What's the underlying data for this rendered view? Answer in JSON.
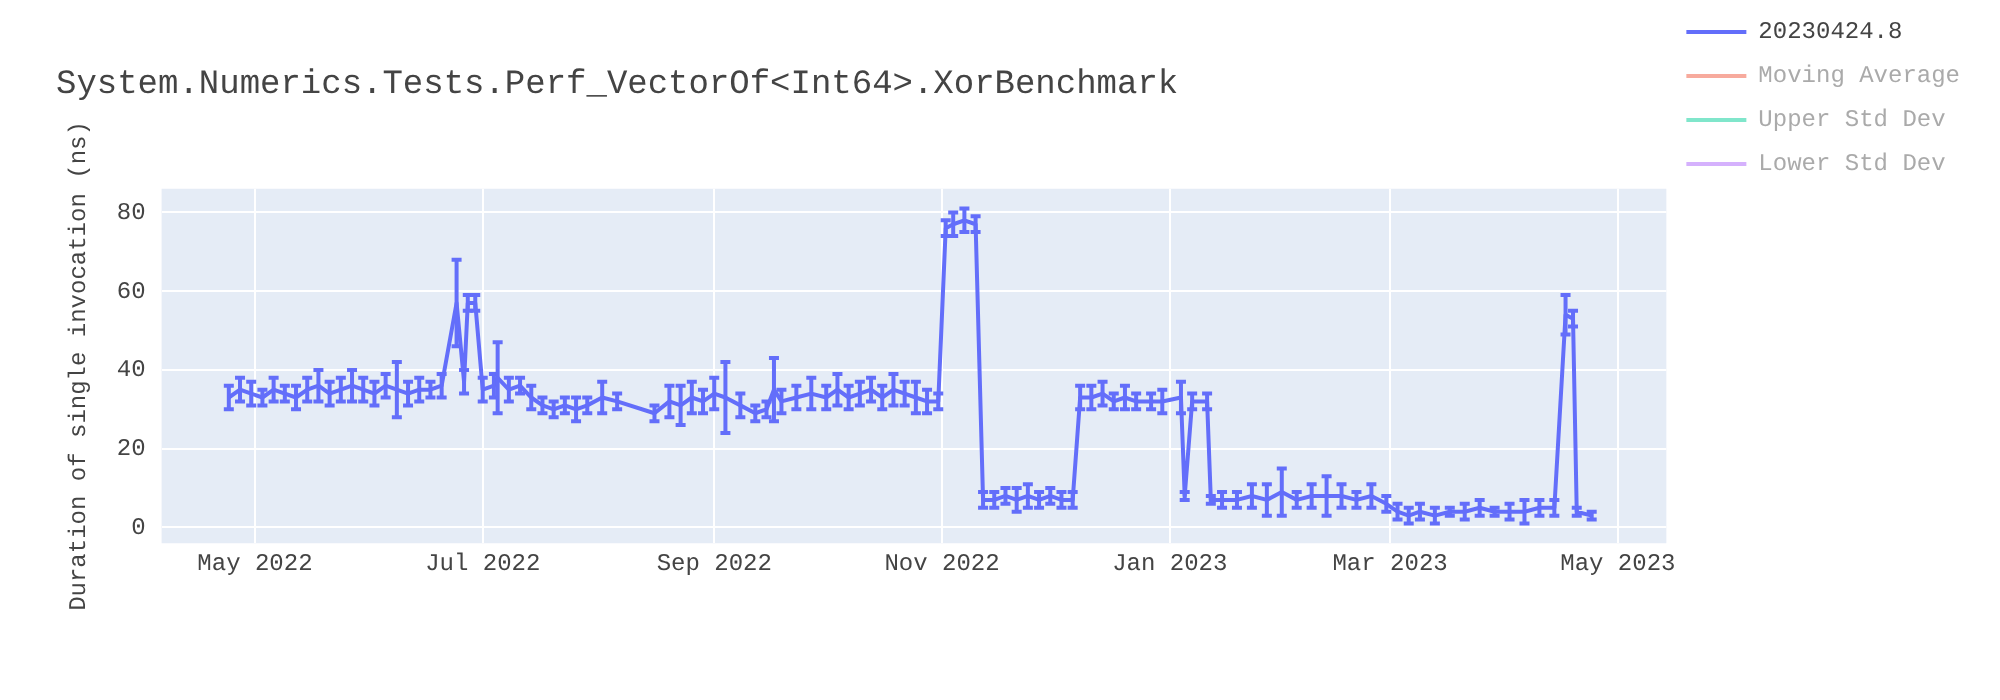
{
  "chart_data": {
    "type": "line",
    "title": "System.Numerics.Tests.Perf_VectorOf<Int64>.XorBenchmark",
    "ylabel": "Duration of single invocation (ns)",
    "xlim": [
      "2022-04-06",
      "2023-05-14"
    ],
    "xticks": [
      {
        "value": "2022-05-01",
        "label": "May 2022"
      },
      {
        "value": "2022-07-01",
        "label": "Jul 2022"
      },
      {
        "value": "2022-09-01",
        "label": "Sep 2022"
      },
      {
        "value": "2022-11-01",
        "label": "Nov 2022"
      },
      {
        "value": "2023-01-01",
        "label": "Jan 2023"
      },
      {
        "value": "2023-03-01",
        "label": "Mar 2023"
      },
      {
        "value": "2023-05-01",
        "label": "May 2023"
      }
    ],
    "ylim": [
      -4,
      86
    ],
    "yticks": [
      0,
      20,
      40,
      60,
      80
    ],
    "grid": true,
    "legend": "top right",
    "line_style": "solid",
    "series": [
      {
        "name": "20230424.8",
        "color": "#636efa",
        "x": [
          "2022-04-24",
          "2022-04-27",
          "2022-04-30",
          "2022-05-03",
          "2022-05-06",
          "2022-05-09",
          "2022-05-12",
          "2022-05-15",
          "2022-05-18",
          "2022-05-21",
          "2022-05-24",
          "2022-05-27",
          "2022-05-30",
          "2022-06-02",
          "2022-06-05",
          "2022-06-08",
          "2022-06-11",
          "2022-06-14",
          "2022-06-17",
          "2022-06-20",
          "2022-06-24",
          "2022-06-26",
          "2022-06-27",
          "2022-06-29",
          "2022-07-01",
          "2022-07-04",
          "2022-07-05",
          "2022-07-08",
          "2022-07-11",
          "2022-07-14",
          "2022-07-17",
          "2022-07-20",
          "2022-07-23",
          "2022-07-26",
          "2022-07-29",
          "2022-08-02",
          "2022-08-06",
          "2022-08-16",
          "2022-08-20",
          "2022-08-23",
          "2022-08-26",
          "2022-08-29",
          "2022-09-01",
          "2022-09-04",
          "2022-09-08",
          "2022-09-12",
          "2022-09-15",
          "2022-09-17",
          "2022-09-19",
          "2022-09-23",
          "2022-09-27",
          "2022-10-01",
          "2022-10-04",
          "2022-10-07",
          "2022-10-10",
          "2022-10-13",
          "2022-10-16",
          "2022-10-19",
          "2022-10-22",
          "2022-10-25",
          "2022-10-28",
          "2022-10-31",
          "2022-11-02",
          "2022-11-04",
          "2022-11-07",
          "2022-11-10",
          "2022-11-12",
          "2022-11-15",
          "2022-11-18",
          "2022-11-21",
          "2022-11-24",
          "2022-11-27",
          "2022-11-30",
          "2022-12-03",
          "2022-12-06",
          "2022-12-08",
          "2022-12-11",
          "2022-12-14",
          "2022-12-17",
          "2022-12-20",
          "2022-12-23",
          "2022-12-27",
          "2022-12-30",
          "2023-01-04",
          "2023-01-05",
          "2023-01-07",
          "2023-01-11",
          "2023-01-12",
          "2023-01-15",
          "2023-01-19",
          "2023-01-23",
          "2023-01-27",
          "2023-01-31",
          "2023-02-04",
          "2023-02-08",
          "2023-02-12",
          "2023-02-16",
          "2023-02-20",
          "2023-02-24",
          "2023-02-28",
          "2023-03-03",
          "2023-03-06",
          "2023-03-09",
          "2023-03-13",
          "2023-03-17",
          "2023-03-21",
          "2023-03-25",
          "2023-03-29",
          "2023-04-02",
          "2023-04-06",
          "2023-04-10",
          "2023-04-14",
          "2023-04-17",
          "2023-04-19",
          "2023-04-20",
          "2023-04-24"
        ],
        "values": [
          33,
          35,
          34,
          33,
          35,
          34,
          33,
          35,
          36,
          34,
          35,
          36,
          35,
          34,
          36,
          35,
          34,
          35,
          35,
          36,
          57,
          37,
          57,
          57,
          35,
          36,
          38,
          35,
          36,
          33,
          31,
          30,
          31,
          30,
          31,
          33,
          32,
          29,
          32,
          31,
          33,
          32,
          34,
          33,
          31,
          29,
          30,
          35,
          32,
          33,
          34,
          33,
          35,
          33,
          34,
          35,
          33,
          35,
          34,
          33,
          32,
          32,
          76,
          77,
          78,
          77,
          7,
          7,
          8,
          7,
          8,
          7,
          8,
          7,
          7,
          33,
          33,
          34,
          32,
          33,
          32,
          32,
          32,
          33,
          8,
          32,
          32,
          7,
          7,
          7,
          8,
          7,
          9,
          7,
          8,
          8,
          8,
          7,
          8,
          6,
          4,
          3,
          4,
          3,
          4,
          4,
          5,
          4,
          4,
          4,
          5,
          5,
          54,
          53,
          4,
          3
        ],
        "errors": [
          3,
          3,
          3,
          2,
          3,
          2,
          3,
          3,
          4,
          3,
          3,
          4,
          3,
          3,
          3,
          7,
          3,
          3,
          2,
          3,
          11,
          3,
          2,
          2,
          3,
          3,
          9,
          3,
          2,
          3,
          2,
          2,
          2,
          3,
          2,
          4,
          2,
          2,
          4,
          5,
          4,
          3,
          4,
          9,
          3,
          2,
          2,
          8,
          3,
          3,
          4,
          3,
          4,
          3,
          3,
          3,
          3,
          4,
          3,
          4,
          3,
          2,
          2,
          3,
          3,
          2,
          2,
          2,
          2,
          3,
          3,
          2,
          2,
          2,
          2,
          3,
          3,
          3,
          2,
          3,
          2,
          2,
          3,
          4,
          1,
          2,
          2,
          1,
          2,
          2,
          3,
          4,
          6,
          2,
          3,
          5,
          3,
          2,
          3,
          2,
          2,
          2,
          2,
          2,
          1,
          2,
          2,
          1,
          2,
          3,
          2,
          2,
          5,
          2,
          1,
          1
        ]
      },
      {
        "name": "Moving Average",
        "color": "#f7aa9d"
      },
      {
        "name": "Upper Std Dev",
        "color": "#80e6cb"
      },
      {
        "name": "Lower Std Dev",
        "color": "#d5b1fd"
      }
    ]
  }
}
